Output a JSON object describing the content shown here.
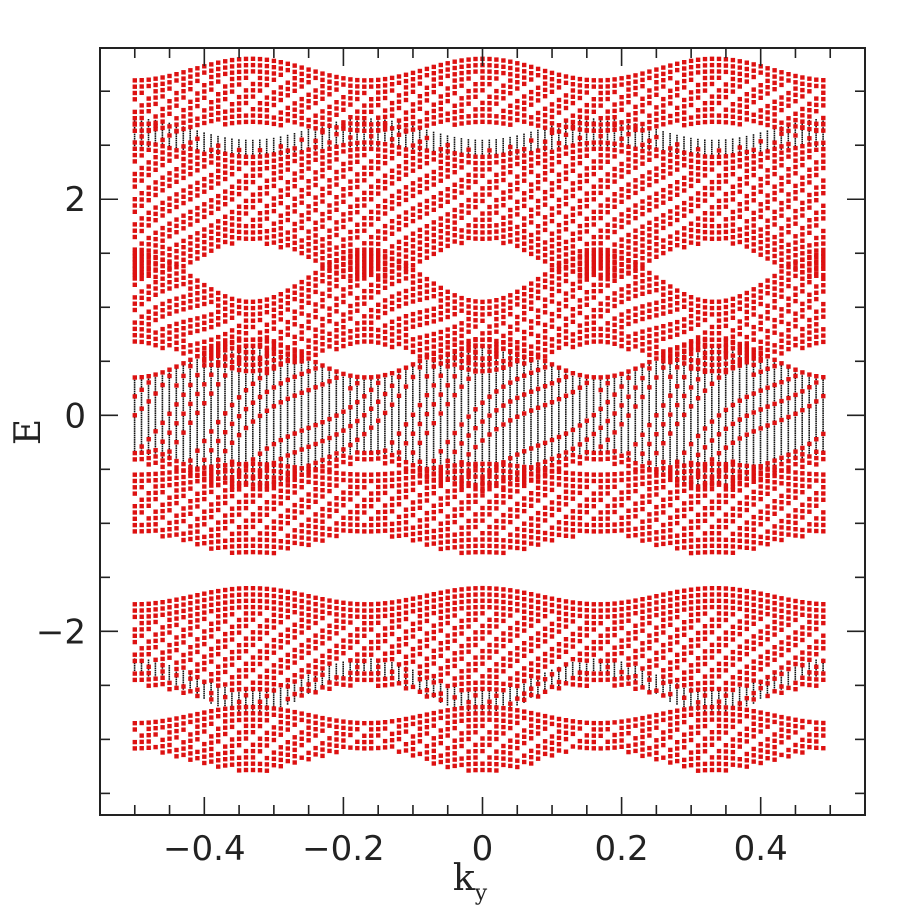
{
  "chart_data": {
    "type": "scatter",
    "title": "",
    "xlabel": "k",
    "xlabel_sub": "y",
    "ylabel": "E",
    "xlim": [
      -0.55,
      0.55
    ],
    "ylim": [
      -3.7,
      3.4
    ],
    "grid": false,
    "x_ticks": [
      {
        "value": -0.4,
        "label": "−0.4"
      },
      {
        "value": -0.2,
        "label": "−0.2"
      },
      {
        "value": 0,
        "label": "0"
      },
      {
        "value": 0.2,
        "label": "0.2"
      },
      {
        "value": 0.4,
        "label": "0.4"
      }
    ],
    "x_minor_step": 0.05,
    "y_ticks": [
      {
        "value": -2,
        "label": "−2"
      },
      {
        "value": 0,
        "label": "0"
      },
      {
        "value": 2,
        "label": "2"
      }
    ],
    "y_minor_step": 0.5,
    "ky_range": [
      -0.5,
      0.49
    ],
    "ky_step": 0.01,
    "period": 0.3333,
    "series": [
      {
        "color": "#dd1111",
        "marker": "square",
        "role": "edge states"
      },
      {
        "color": "#111111",
        "marker": "dot",
        "role": "bulk states"
      }
    ],
    "bands": [
      {
        "red_lo": [
          2.7,
          2.6
        ],
        "red_hi": [
          3.3,
          3.1
        ],
        "black_lo": null,
        "black_hi": null
      },
      {
        "red_lo": [
          1.6,
          1.25
        ],
        "red_hi": [
          2.45,
          2.7
        ],
        "black_lo": [
          2.4,
          2.5
        ],
        "black_hi": [
          2.55,
          2.75
        ]
      },
      {
        "red_lo": [
          0.4,
          0.65
        ],
        "red_hi": [
          1.05,
          1.5
        ],
        "black_lo": null,
        "black_hi": null
      },
      {
        "red_lo": [
          -0.7,
          -0.45
        ],
        "red_hi": [
          0.7,
          0.35
        ],
        "black_lo": [
          -0.65,
          -0.35
        ],
        "black_hi": [
          0.65,
          0.35
        ]
      },
      {
        "red_lo": [
          -1.3,
          -1.1
        ],
        "red_hi": [
          -0.45,
          -0.55
        ],
        "black_lo": null,
        "black_hi": null
      },
      {
        "red_lo": [
          -2.7,
          -2.5
        ],
        "red_hi": [
          -1.6,
          -1.75
        ],
        "black_lo": [
          -2.75,
          -2.4
        ],
        "black_hi": [
          -2.55,
          -2.25
        ]
      },
      {
        "red_lo": [
          -3.3,
          -3.1
        ],
        "red_hi": [
          -2.7,
          -2.85
        ],
        "black_lo": null,
        "black_hi": null
      }
    ]
  }
}
